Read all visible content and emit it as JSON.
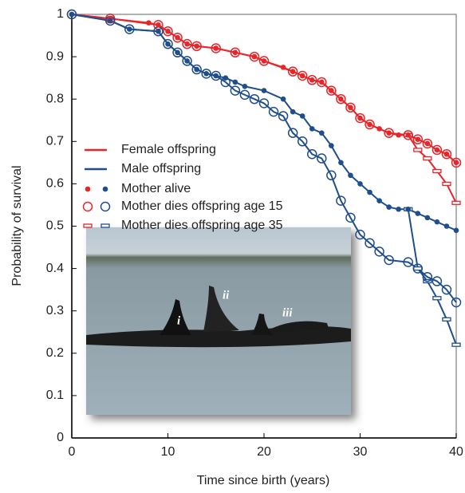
{
  "chart_data": {
    "type": "line",
    "xlabel": "Time since birth (years)",
    "ylabel": "Probability of survival",
    "xlim": [
      0,
      40
    ],
    "xticks": [
      0,
      10,
      20,
      30,
      40
    ],
    "ylim": [
      0,
      1
    ],
    "yticks": [
      0,
      0.1,
      0.2,
      0.3,
      0.4,
      0.5,
      0.6,
      0.7,
      0.8,
      0.9,
      1
    ],
    "series": [
      {
        "color": "#e8262a",
        "marker": "dot",
        "x": [
          0,
          4,
          8,
          9,
          10,
          11,
          12,
          13,
          15,
          17,
          19,
          20,
          22,
          23,
          24,
          25,
          26,
          27,
          28,
          29,
          30,
          31,
          32,
          33,
          34,
          35,
          36,
          37,
          38,
          39,
          40
        ],
        "values": [
          1,
          0.99,
          0.98,
          0.975,
          0.96,
          0.945,
          0.93,
          0.925,
          0.92,
          0.91,
          0.9,
          0.89,
          0.875,
          0.865,
          0.855,
          0.845,
          0.84,
          0.82,
          0.8,
          0.78,
          0.755,
          0.74,
          0.73,
          0.72,
          0.715,
          0.715,
          0.705,
          0.695,
          0.68,
          0.67,
          0.65
        ]
      },
      {
        "color": "#e8262a",
        "marker": "circle",
        "x": [
          0,
          4,
          9,
          10,
          11,
          12,
          13,
          15,
          17,
          19,
          20,
          23,
          24,
          25,
          26,
          27,
          28,
          29,
          30,
          31,
          33,
          35,
          36,
          37,
          38,
          39,
          40
        ],
        "values": [
          1,
          0.99,
          0.975,
          0.96,
          0.945,
          0.93,
          0.925,
          0.92,
          0.91,
          0.9,
          0.89,
          0.865,
          0.855,
          0.845,
          0.84,
          0.82,
          0.8,
          0.78,
          0.755,
          0.74,
          0.72,
          0.715,
          0.705,
          0.695,
          0.68,
          0.67,
          0.65
        ]
      },
      {
        "color": "#e8262a",
        "marker": "dash",
        "x": [
          35,
          36,
          37,
          38,
          39,
          40
        ],
        "values": [
          0.715,
          0.68,
          0.66,
          0.63,
          0.6,
          0.555
        ]
      },
      {
        "color": "#1f4e8c",
        "marker": "dot",
        "x": [
          0,
          4,
          6,
          9,
          10,
          11,
          12,
          13,
          14,
          15,
          16,
          17,
          18,
          20,
          22,
          23,
          24,
          25,
          26,
          27,
          28,
          29,
          30,
          31,
          32,
          33,
          34,
          35,
          36,
          37,
          38,
          39,
          40
        ],
        "values": [
          1,
          0.985,
          0.965,
          0.96,
          0.93,
          0.91,
          0.89,
          0.87,
          0.86,
          0.855,
          0.85,
          0.84,
          0.83,
          0.82,
          0.8,
          0.77,
          0.76,
          0.73,
          0.72,
          0.69,
          0.65,
          0.62,
          0.6,
          0.58,
          0.56,
          0.545,
          0.54,
          0.54,
          0.53,
          0.52,
          0.51,
          0.5,
          0.49
        ]
      },
      {
        "color": "#1f4e8c",
        "marker": "circle",
        "x": [
          0,
          4,
          6,
          9,
          10,
          11,
          12,
          13,
          14,
          15,
          16,
          17,
          18,
          19,
          20,
          21,
          22,
          23,
          24,
          25,
          26,
          27,
          28,
          29,
          30,
          31,
          32,
          33,
          35,
          36,
          37,
          38,
          39,
          40
        ],
        "values": [
          1,
          0.985,
          0.965,
          0.96,
          0.93,
          0.91,
          0.89,
          0.87,
          0.86,
          0.855,
          0.84,
          0.82,
          0.81,
          0.8,
          0.79,
          0.77,
          0.76,
          0.72,
          0.7,
          0.67,
          0.66,
          0.62,
          0.56,
          0.52,
          0.48,
          0.46,
          0.44,
          0.42,
          0.415,
          0.4,
          0.38,
          0.37,
          0.35,
          0.32
        ]
      },
      {
        "color": "#1f4e8c",
        "marker": "dash",
        "x": [
          35,
          36,
          37,
          38,
          39,
          40
        ],
        "values": [
          0.54,
          0.4,
          0.37,
          0.33,
          0.28,
          0.22
        ]
      }
    ],
    "legend": [
      {
        "label": "Female offspring",
        "marker": "line",
        "colors": [
          "#e8262a"
        ]
      },
      {
        "label": "Male offspring",
        "marker": "line",
        "colors": [
          "#1f4e8c"
        ]
      },
      {
        "label": "Mother alive",
        "marker": "dot",
        "colors": [
          "#e8262a",
          "#1f4e8c"
        ]
      },
      {
        "label": "Mother dies offspring age 15",
        "marker": "circle",
        "colors": [
          "#e8262a",
          "#1f4e8c"
        ]
      },
      {
        "label": "Mother dies offspring age 35",
        "marker": "dash",
        "colors": [
          "#e8262a",
          "#1f4e8c"
        ]
      }
    ],
    "photo_labels": [
      "i",
      "ii",
      "iii"
    ]
  }
}
